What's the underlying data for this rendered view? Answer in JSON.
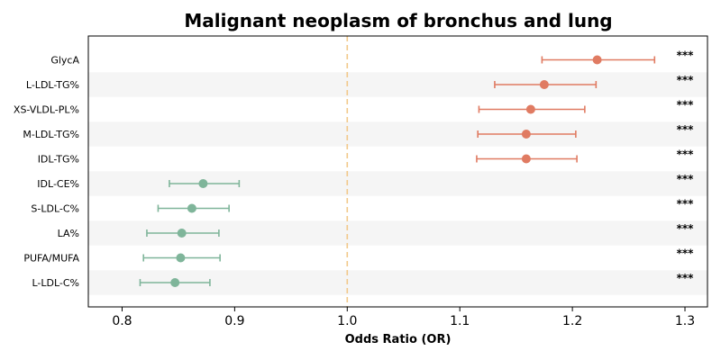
{
  "chart_data": {
    "type": "forest",
    "title": "Malignant neoplasm of bronchus and lung",
    "xlabel": "Odds Ratio (OR)",
    "xlim": [
      0.77,
      1.32
    ],
    "xticks": [
      "0.8",
      "0.9",
      "1.0",
      "1.1",
      "1.2",
      "1.3"
    ],
    "xtick_values": [
      0.8,
      0.9,
      1.0,
      1.1,
      1.2,
      1.3
    ],
    "reference_line": 1.0,
    "grid": false,
    "colors": {
      "positive": "#e07b62",
      "negative": "#7fb59a",
      "reference": "#f2c98a",
      "band": "#f5f5f5"
    },
    "rows": [
      {
        "label": "GlycA",
        "or": 1.222,
        "lower": 1.173,
        "upper": 1.273,
        "sig": "***"
      },
      {
        "label": "L-LDL-TG%",
        "or": 1.175,
        "lower": 1.131,
        "upper": 1.221,
        "sig": "***"
      },
      {
        "label": "XS-VLDL-PL%",
        "or": 1.163,
        "lower": 1.117,
        "upper": 1.211,
        "sig": "***"
      },
      {
        "label": "M-LDL-TG%",
        "or": 1.159,
        "lower": 1.116,
        "upper": 1.203,
        "sig": "***"
      },
      {
        "label": "IDL-TG%",
        "or": 1.159,
        "lower": 1.115,
        "upper": 1.204,
        "sig": "***"
      },
      {
        "label": "IDL-CE%",
        "or": 0.872,
        "lower": 0.842,
        "upper": 0.904,
        "sig": "***"
      },
      {
        "label": "S-LDL-C%",
        "or": 0.862,
        "lower": 0.832,
        "upper": 0.895,
        "sig": "***"
      },
      {
        "label": "LA%",
        "or": 0.853,
        "lower": 0.822,
        "upper": 0.886,
        "sig": "***"
      },
      {
        "label": "PUFA/MUFA",
        "or": 0.852,
        "lower": 0.819,
        "upper": 0.887,
        "sig": "***"
      },
      {
        "label": "L-LDL-C%",
        "or": 0.847,
        "lower": 0.816,
        "upper": 0.878,
        "sig": "***"
      }
    ]
  }
}
